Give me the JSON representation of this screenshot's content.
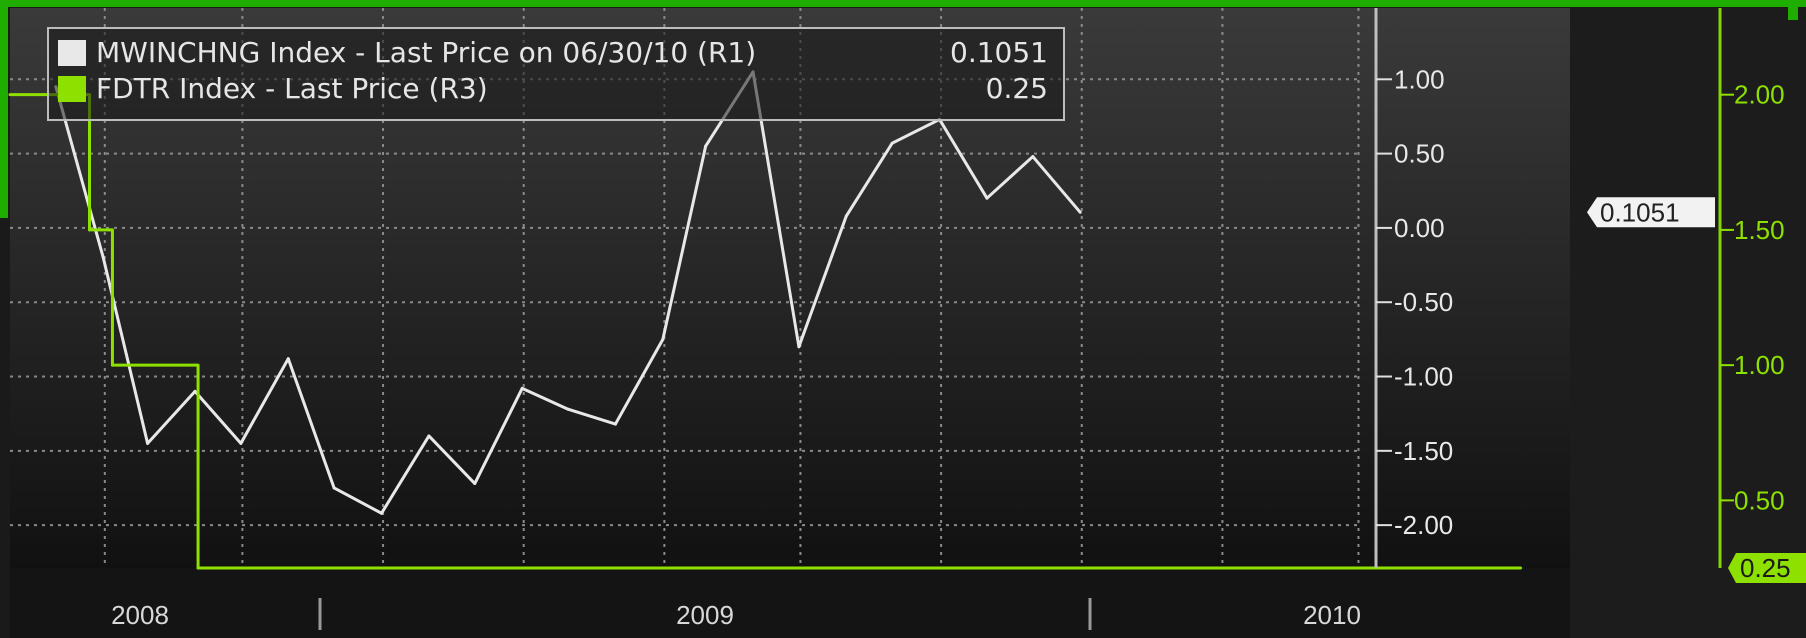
{
  "colors": {
    "background": "#1a1a1a",
    "plot_background_top": "#3a3a3a",
    "plot_background_bottom": "#111111",
    "grid": "#8a8a8a",
    "series_white": "#e8e8e8",
    "series_green": "#8ee000",
    "frame_green": "#1fae00"
  },
  "chart_data": {
    "type": "line",
    "title": "",
    "xlabel": "",
    "x_tick_labels": [
      "2008",
      "2009",
      "2010"
    ],
    "legend_position": "top-left",
    "grid": true,
    "x_range": [
      "2007-12-01",
      "2010-08-31"
    ],
    "axes": {
      "r1": {
        "range": [
          -2.1,
          1.15
        ],
        "ticks": [
          1.0,
          0.5,
          0.0,
          -0.5,
          -1.0,
          -1.5,
          -2.0
        ],
        "tick_labels": [
          "1.00",
          "0.50",
          "0.00",
          "-0.50",
          "-1.00",
          "-1.50",
          "-2.00"
        ]
      },
      "r3": {
        "range": [
          0.25,
          2.18
        ],
        "ticks": [
          2.0,
          1.5,
          1.0,
          0.5
        ],
        "tick_labels": [
          "2.00",
          "1.50",
          "1.00",
          "0.50"
        ]
      }
    },
    "series": [
      {
        "name": "MWINCHNG Index - Last Price on 06/30/10 (R1)",
        "legend_value": "0.1051",
        "axis": "r1",
        "color": "#e8e8e8",
        "last_value_label": "0.1051",
        "points": [
          [
            "2007-12-31",
            0.95
          ],
          [
            "2008-01-31",
            -0.2
          ],
          [
            "2008-02-29",
            -1.45
          ],
          [
            "2008-03-31",
            -1.1
          ],
          [
            "2008-04-30",
            -1.45
          ],
          [
            "2008-05-31",
            -0.88
          ],
          [
            "2008-06-30",
            -1.75
          ],
          [
            "2008-07-31",
            -1.92
          ],
          [
            "2008-08-31",
            -1.4
          ],
          [
            "2008-09-30",
            -1.72
          ],
          [
            "2008-10-31",
            -1.08
          ],
          [
            "2008-11-30",
            -1.22
          ],
          [
            "2008-12-31",
            -1.32
          ],
          [
            "2009-01-31",
            -0.75
          ],
          [
            "2009-02-28",
            0.55
          ],
          [
            "2009-03-31",
            1.05
          ],
          [
            "2009-04-30",
            -0.8
          ],
          [
            "2009-05-31",
            0.08
          ],
          [
            "2009-06-30",
            0.57
          ],
          [
            "2009-07-31",
            0.73
          ],
          [
            "2009-08-31",
            0.2
          ],
          [
            "2009-09-30",
            0.48
          ],
          [
            "2009-10-31",
            0.1051
          ]
        ]
      },
      {
        "name": "FDTR Index - Last Price (R3)",
        "legend_value": "0.25",
        "axis": "r3",
        "color": "#8ee000",
        "last_value_label": "0.25",
        "step": true,
        "points": [
          [
            "2007-12-01",
            2.0
          ],
          [
            "2008-01-01",
            2.0
          ],
          [
            "2008-01-22",
            1.5
          ],
          [
            "2008-02-04",
            1.5
          ],
          [
            "2008-02-06",
            1.0
          ],
          [
            "2008-03-31",
            1.0
          ],
          [
            "2008-04-02",
            0.25
          ],
          [
            "2010-08-15",
            0.25
          ]
        ]
      }
    ]
  }
}
